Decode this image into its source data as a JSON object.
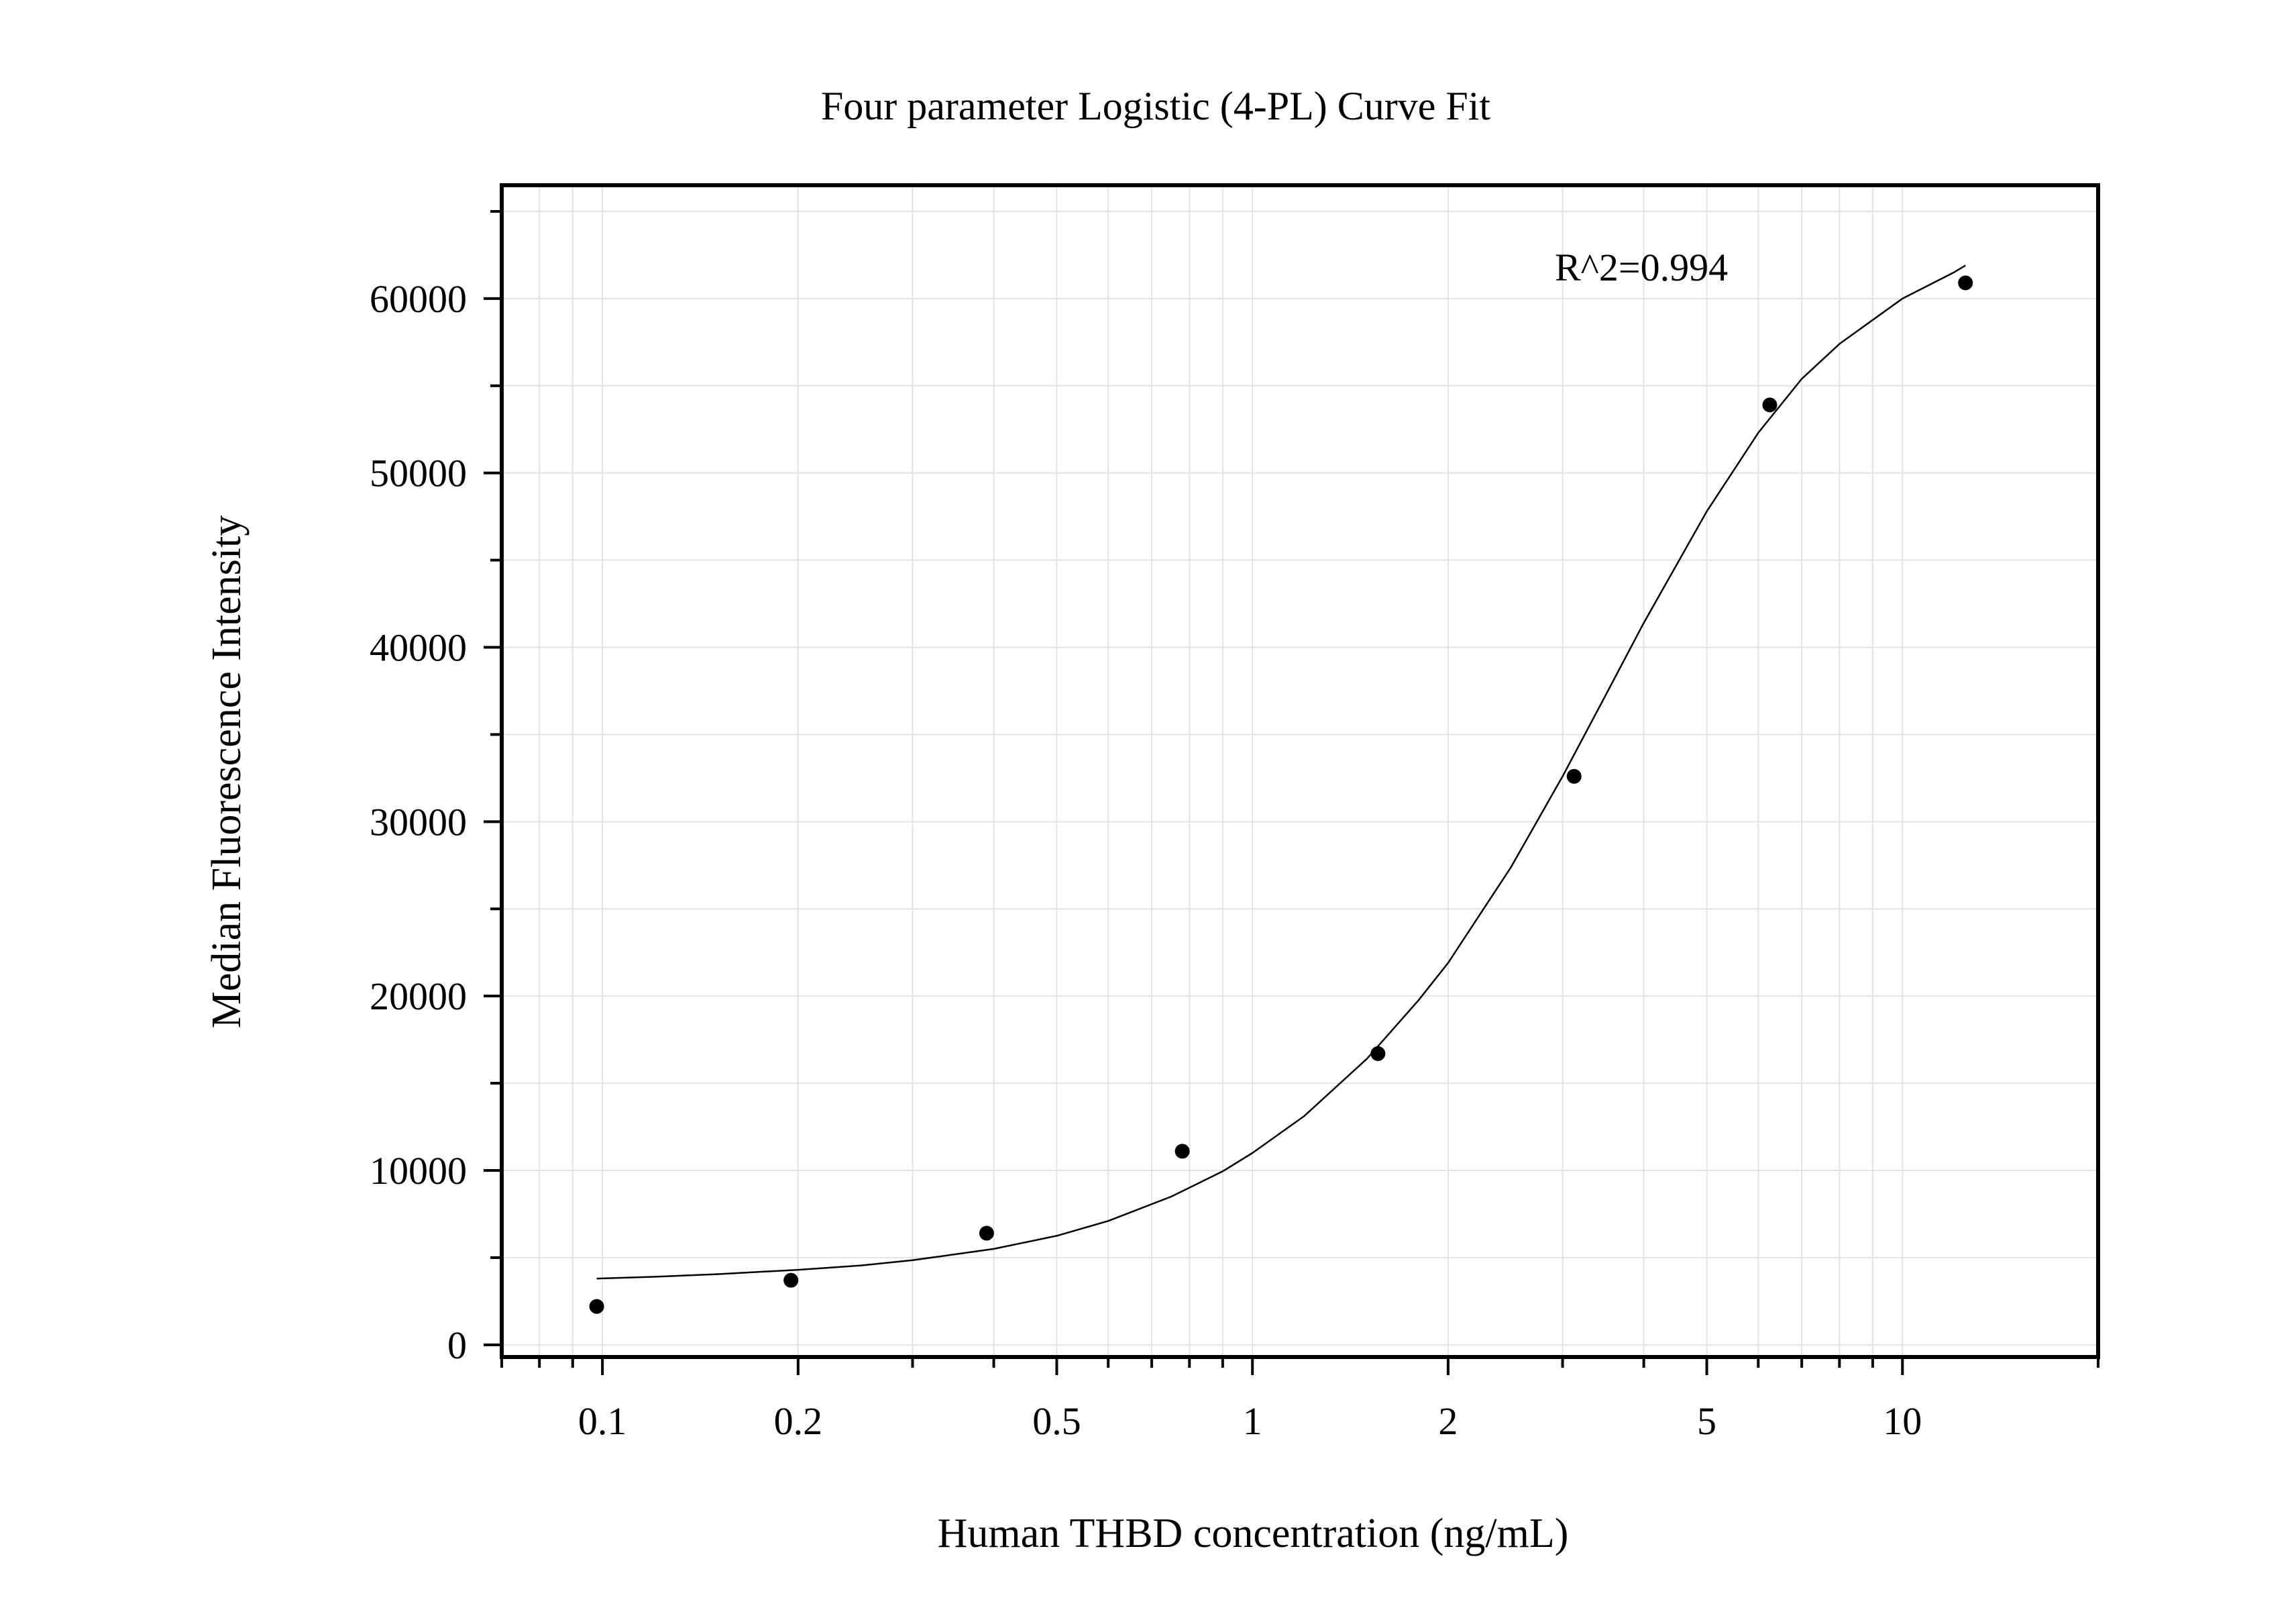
{
  "chart_data": {
    "type": "scatter",
    "title": "Four parameter Logistic (4-PL) Curve Fit",
    "xlabel": "Human THBD concentration (ng/mL)",
    "ylabel": "Median Fluorescence Intensity",
    "x_scale": "log",
    "xlim": [
      0.07,
      20
    ],
    "ylim": [
      -700,
      66500
    ],
    "x_ticks": [
      0.1,
      0.2,
      0.5,
      1,
      2,
      5,
      10
    ],
    "x_tick_labels": [
      "0.1",
      "0.2",
      "0.5",
      "1",
      "2",
      "5",
      "10"
    ],
    "y_ticks": [
      0,
      10000,
      20000,
      30000,
      40000,
      50000,
      60000
    ],
    "y_tick_labels": [
      "0",
      "10000",
      "20000",
      "30000",
      "40000",
      "50000",
      "60000"
    ],
    "grid": true,
    "annotation": "R^2=0.994",
    "series": [
      {
        "type": "scatter",
        "color": "#000000",
        "x": [
          0.098,
          0.195,
          0.39,
          0.78,
          1.56,
          3.125,
          6.25,
          12.5
        ],
        "y": [
          2200,
          3700,
          6400,
          11100,
          16700,
          32600,
          53900,
          60900
        ]
      },
      {
        "type": "line",
        "color": "#000000",
        "x": [
          0.098,
          0.12,
          0.15,
          0.2,
          0.25,
          0.3,
          0.4,
          0.5,
          0.6,
          0.75,
          0.9,
          1.0,
          1.2,
          1.5,
          1.8,
          2.0,
          2.5,
          3.0,
          3.5,
          4.0,
          5.0,
          6.0,
          7.0,
          8.0,
          10.0,
          12.0,
          12.5
        ],
        "y": [
          3800,
          3900,
          4050,
          4300,
          4550,
          4850,
          5500,
          6250,
          7100,
          8500,
          9950,
          11000,
          13100,
          16400,
          19750,
          21900,
          27400,
          32600,
          37300,
          41400,
          47800,
          52300,
          55400,
          57400,
          60000,
          61500,
          61900
        ]
      }
    ]
  }
}
